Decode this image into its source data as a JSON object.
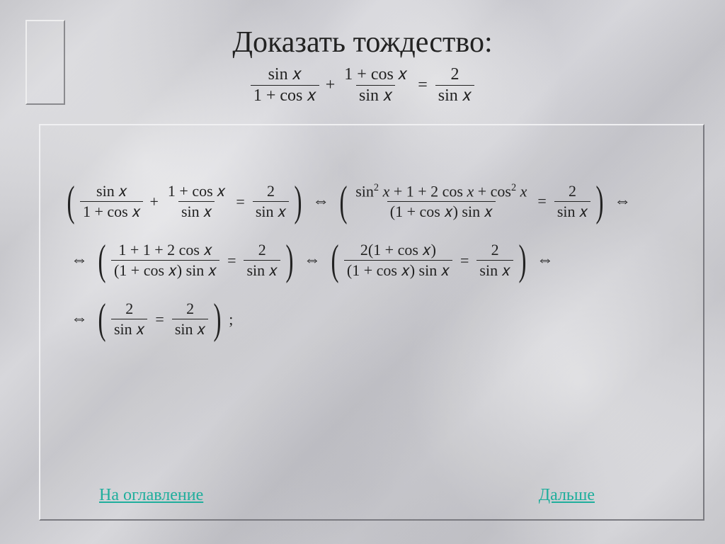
{
  "colors": {
    "text": "#222222",
    "link": "#1fae9c",
    "emboss_light": "#f0f0f2",
    "emboss_dark": "#7a7a80"
  },
  "title": {
    "text": "Доказать тождество:"
  },
  "mainEq": {
    "f1": {
      "num": "sin 𝑥",
      "den": "1 + cos 𝑥"
    },
    "plus": "+",
    "f2": {
      "num": "1 + cos 𝑥",
      "den": "sin 𝑥"
    },
    "eq": "=",
    "f3": {
      "num": "2",
      "den": "sin 𝑥"
    }
  },
  "steps": {
    "s1": {
      "lhs": {
        "f1": {
          "num": "sin 𝑥",
          "den": "1 + cos 𝑥"
        },
        "f2": {
          "num": "1 + cos 𝑥",
          "den": "sin 𝑥"
        },
        "eq": "=",
        "f3": {
          "num": "2",
          "den": "sin 𝑥"
        }
      },
      "rhs": {
        "f1": {
          "num": "sin² 𝑥 + 1 + 2 cos 𝑥 + cos² 𝑥",
          "den": "(1 + cos 𝑥) sin 𝑥"
        },
        "eq": "=",
        "f2": {
          "num": "2",
          "den": "sin 𝑥"
        }
      }
    },
    "s2": {
      "lhs": {
        "f1": {
          "num": "1 + 1 + 2 cos 𝑥",
          "den": "(1 + cos 𝑥) sin 𝑥"
        },
        "eq": "=",
        "f2": {
          "num": "2",
          "den": "sin 𝑥"
        }
      },
      "rhs": {
        "f1": {
          "num": "2(1 + cos 𝑥)",
          "den": "(1 + cos 𝑥) sin 𝑥"
        },
        "eq": "=",
        "f2": {
          "num": "2",
          "den": "sin 𝑥"
        }
      }
    },
    "s3": {
      "f1": {
        "num": "2",
        "den": "sin 𝑥"
      },
      "eq": "=",
      "f2": {
        "num": "2",
        "den": "sin 𝑥"
      }
    }
  },
  "symbols": {
    "iff": "⇔",
    "plus": "+",
    "eq": "=",
    "semi": ";"
  },
  "nav": {
    "back": "На оглавление",
    "next": "Дальше"
  },
  "style": {
    "title_fontsize": 42,
    "eq_fontsize": 24,
    "body_fontsize": 22,
    "link_fontsize": 24
  }
}
